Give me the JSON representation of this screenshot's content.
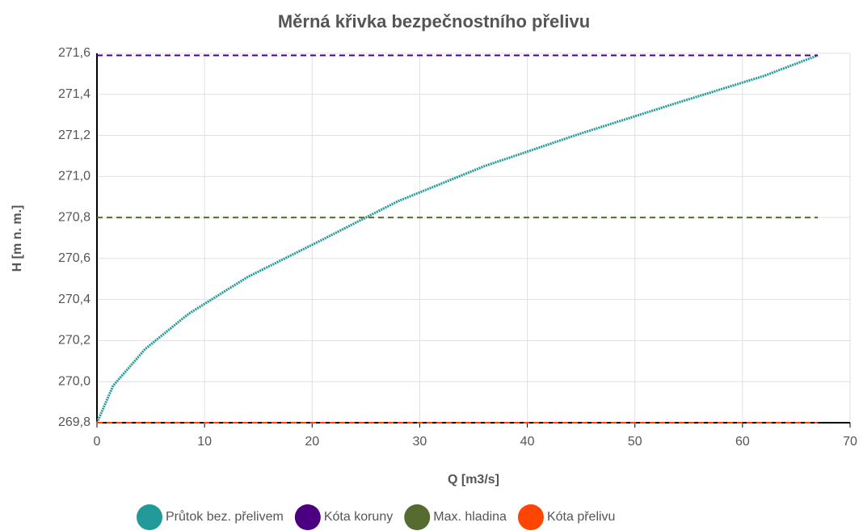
{
  "chart_data": {
    "type": "line",
    "title": "Měrná křivka bezpečnostního přelivu",
    "xlabel": "Q [m3/s]",
    "ylabel": "H [m n. m.]",
    "xlim": [
      0,
      70
    ],
    "xticks": [
      0,
      10,
      20,
      30,
      40,
      50,
      60,
      70
    ],
    "ylim": [
      269.8,
      271.6
    ],
    "yticks": [
      {
        "value": 269.8,
        "label": "269,8"
      },
      {
        "value": 270.0,
        "label": "270,0"
      },
      {
        "value": 270.2,
        "label": "270,2"
      },
      {
        "value": 270.4,
        "label": "270,4"
      },
      {
        "value": 270.6,
        "label": "270,6"
      },
      {
        "value": 270.8,
        "label": "270,8"
      },
      {
        "value": 271.0,
        "label": "271,0"
      },
      {
        "value": 271.2,
        "label": "271,2"
      },
      {
        "value": 271.4,
        "label": "271,4"
      },
      {
        "value": 271.6,
        "label": "271,6"
      }
    ],
    "grid": true,
    "legend": "bottom",
    "series": [
      {
        "name": "Průtok bez. přelivem",
        "color": "#239a9a",
        "dashed": false,
        "x": [
          0,
          1.5,
          4.5,
          8.5,
          14,
          20.5,
          25,
          28,
          36,
          45,
          54,
          62,
          67
        ],
        "values": [
          269.8,
          269.98,
          270.16,
          270.33,
          270.51,
          270.68,
          270.8,
          270.88,
          271.05,
          271.21,
          271.36,
          271.49,
          271.59
        ]
      },
      {
        "name": "Kóta koruny",
        "color": "#4b0082",
        "dashed": true,
        "x": [
          0,
          67
        ],
        "values": [
          271.59,
          271.59
        ]
      },
      {
        "name": "Max. hladina",
        "color": "#556b2f",
        "dashed": true,
        "x": [
          0,
          67
        ],
        "values": [
          270.8,
          270.8
        ]
      },
      {
        "name": "Kóta přelivu",
        "color": "#ff4500",
        "dashed": true,
        "x": [
          0,
          67
        ],
        "values": [
          269.8,
          269.8
        ]
      }
    ]
  }
}
